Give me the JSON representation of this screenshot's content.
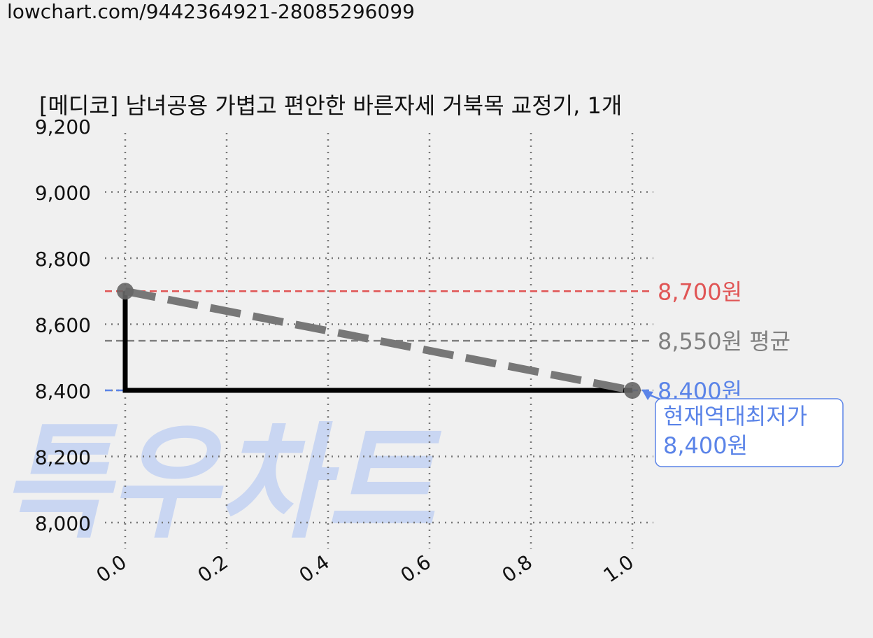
{
  "url_text": "lowchart.com/9442364921-28085296099",
  "watermark_text": "특우차트",
  "colors": {
    "background": "#f0f0f0",
    "max_line": "#e05555",
    "avg_line": "#808080",
    "min_line": "#5b84e8",
    "price_line": "#000000",
    "trend_line": "#777777",
    "watermark": "#c9d6f2",
    "grid": "#777777"
  },
  "chart_data": {
    "type": "line",
    "title": "[메디코] 남녀공용 가볍고 편안한 바른자세 거북목 교정기, 1개",
    "xlim": [
      0.0,
      1.0
    ],
    "ylim": [
      7900,
      9200
    ],
    "x_ticks": [
      "0.0",
      "0.2",
      "0.4",
      "0.6",
      "0.8",
      "1.0"
    ],
    "x_tick_values": [
      0.0,
      0.2,
      0.4,
      0.6,
      0.8,
      1.0
    ],
    "y_ticks": [
      "8,000",
      "8,200",
      "8,400",
      "8,600",
      "8,800",
      "9,000",
      "9,200"
    ],
    "y_tick_values": [
      8000,
      8200,
      8400,
      8600,
      8800,
      9000,
      9200
    ],
    "grid": true,
    "series": [
      {
        "style": "step",
        "points": [
          [
            0.0,
            8700
          ],
          [
            0.0,
            8400
          ],
          [
            1.0,
            8400
          ]
        ]
      },
      {
        "style": "dashed-trend",
        "points": [
          [
            0.0,
            8700
          ],
          [
            1.0,
            8400
          ]
        ]
      }
    ],
    "markers": [
      [
        0.0,
        8700
      ],
      [
        1.0,
        8400
      ]
    ],
    "reference_lines": [
      {
        "y": 8700,
        "label": "8,700원",
        "kind": "max"
      },
      {
        "y": 8550,
        "label": "8,550원 평균",
        "kind": "avg"
      },
      {
        "y": 8400,
        "label": "8,400원",
        "kind": "min"
      }
    ],
    "annotation": {
      "line1": "현재역대최저가",
      "line2": "8,400원",
      "x": 1.0,
      "y": 8400
    }
  }
}
